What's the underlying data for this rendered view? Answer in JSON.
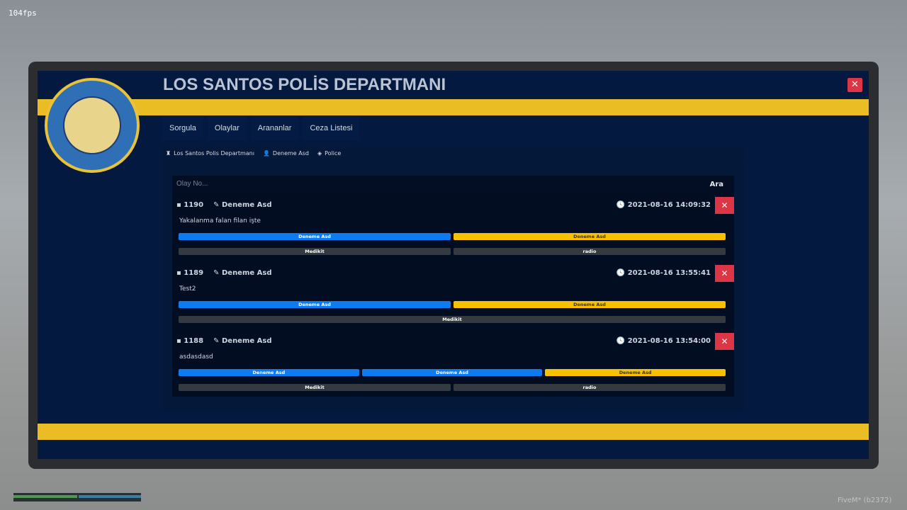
{
  "hud": {
    "fps": "104fps",
    "build": "FiveM* (b2372)"
  },
  "header": {
    "title": "LOS SANTOS POLİS DEPARTMANI",
    "close": "✕"
  },
  "tabs": [
    "Sorgula",
    "Olaylar",
    "Arananlar",
    "Ceza Listesi"
  ],
  "breadcrumb": [
    "Los Santos Polis Departmanı",
    "Deneme Asd",
    "Police"
  ],
  "search": {
    "placeholder": "Olay No...",
    "button": "Ara"
  },
  "incidents": [
    {
      "id": "1190",
      "author": "Deneme Asd",
      "date": "2021-08-16 14:09:32",
      "description": "Yakalanma falan filan işte",
      "row1": [
        {
          "label": "Deneme Asd",
          "color": "blue"
        },
        {
          "label": "Deneme Asd",
          "color": "yellow"
        }
      ],
      "row2": [
        "Medikit",
        "radio"
      ]
    },
    {
      "id": "1189",
      "author": "Deneme Asd",
      "date": "2021-08-16 13:55:41",
      "description": "Test2",
      "row1": [
        {
          "label": "Deneme Asd",
          "color": "blue"
        },
        {
          "label": "Deneme Asd",
          "color": "yellow"
        }
      ],
      "row2": [
        "Medikit"
      ]
    },
    {
      "id": "1188",
      "author": "Deneme Asd",
      "date": "2021-08-16 13:54:00",
      "description": "asdasdasd",
      "row1": [
        {
          "label": "Deneme Asd",
          "color": "blue"
        },
        {
          "label": "Deneme Asd",
          "color": "blue"
        },
        {
          "label": "Deneme Asd",
          "color": "yellow"
        }
      ],
      "row2": [
        "Medikit",
        "radio"
      ]
    }
  ],
  "colors": {
    "navy": "#03193f",
    "yellow": "#ebbd24",
    "danger": "#dc3545",
    "blue": "#0d7bf1",
    "badge_yellow": "#f8c100"
  }
}
